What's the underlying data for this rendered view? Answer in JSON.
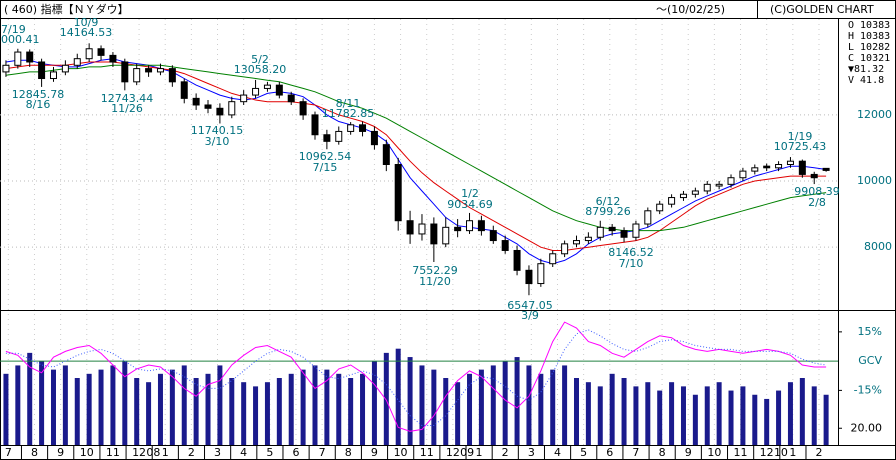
{
  "chart_data": {
    "type": "candlestick",
    "title": "( 460) 指標【ＮＹダウ】",
    "date_range": "～(10/02/25)",
    "copyright": "(C)GOLDEN CHART",
    "info": [
      "O 10383",
      "H 10383",
      "L 10282",
      "C 10321",
      "▼81.32",
      "V  41.8"
    ],
    "open": [
      13300,
      13500,
      13900,
      13600,
      13100,
      13300,
      13500,
      13700,
      14000,
      13800,
      13600,
      13000,
      13400,
      13300,
      13400,
      13000,
      12500,
      12300,
      12200,
      12000,
      12400,
      12600,
      12800,
      12900,
      12600,
      12400,
      12000,
      11400,
      11200,
      11500,
      11700,
      11500,
      11100,
      10500,
      8800,
      8400,
      8700,
      8100,
      8600,
      8500,
      8800,
      8500,
      8200,
      7900,
      7300,
      6900,
      7500,
      7800,
      8100,
      8200,
      8300,
      8600,
      8500,
      8300,
      8700,
      9100,
      9300,
      9500,
      9600,
      9700,
      9850,
      9900,
      10100,
      10300,
      10450,
      10400,
      10500,
      10600,
      10200,
      10383
    ],
    "high": [
      13650,
      14000,
      13980,
      13700,
      13450,
      13650,
      13850,
      14165,
      14100,
      13900,
      13700,
      13550,
      13500,
      13550,
      13500,
      13100,
      12650,
      12450,
      12350,
      12550,
      12750,
      13058,
      13000,
      13000,
      12700,
      12500,
      12100,
      11550,
      11650,
      11783,
      11800,
      11650,
      11250,
      10700,
      9100,
      9000,
      8900,
      8900,
      8850,
      9035,
      8950,
      8650,
      8350,
      8050,
      7450,
      7650,
      7900,
      8200,
      8350,
      8450,
      8799,
      8700,
      8600,
      8800,
      9200,
      9400,
      9600,
      9700,
      9800,
      10000,
      10000,
      10200,
      10400,
      10500,
      10530,
      10600,
      10725,
      10650,
      10280,
      10383
    ],
    "low": [
      13150,
      13400,
      13450,
      12846,
      13000,
      13200,
      13400,
      13600,
      13650,
      13450,
      12743,
      12900,
      13150,
      13200,
      12850,
      12350,
      12150,
      12050,
      11740,
      11900,
      12300,
      12500,
      12700,
      12500,
      12300,
      11850,
      11250,
      10962,
      11100,
      11400,
      11350,
      10950,
      10300,
      8500,
      8100,
      8200,
      7552,
      8000,
      8300,
      8400,
      8350,
      8100,
      7800,
      7150,
      6547,
      6800,
      7400,
      7700,
      8000,
      8100,
      8200,
      8350,
      8146,
      8200,
      8600,
      9000,
      9200,
      9400,
      9500,
      9600,
      9750,
      9800,
      10000,
      10200,
      10300,
      10300,
      10400,
      10100,
      9908,
      10282
    ],
    "close": [
      13500,
      13900,
      13600,
      13100,
      13300,
      13500,
      13700,
      14000,
      13800,
      13600,
      13000,
      13400,
      13300,
      13400,
      13000,
      12500,
      12300,
      12200,
      12000,
      12400,
      12600,
      12800,
      12900,
      12600,
      12400,
      12000,
      11400,
      11200,
      11500,
      11700,
      11500,
      11100,
      10500,
      8800,
      8400,
      8700,
      8100,
      8600,
      8500,
      8800,
      8500,
      8200,
      7900,
      7300,
      6900,
      7500,
      7800,
      8100,
      8200,
      8300,
      8600,
      8500,
      8300,
      8700,
      9100,
      9300,
      9500,
      9600,
      9700,
      9900,
      9900,
      10100,
      10300,
      10400,
      10400,
      10500,
      10600,
      10200,
      10100,
      10321
    ],
    "lines": [
      {
        "color": "#0000ff",
        "values": [
          13600,
          13650,
          13650,
          13550,
          13500,
          13450,
          13450,
          13550,
          13650,
          13700,
          13600,
          13550,
          13500,
          13400,
          13300,
          13100,
          12900,
          12750,
          12600,
          12500,
          12450,
          12500,
          12650,
          12700,
          12650,
          12550,
          12300,
          12000,
          11800,
          11700,
          11600,
          11450,
          11200,
          10650,
          10100,
          9700,
          9300,
          8900,
          8650,
          8600,
          8550,
          8500,
          8300,
          8100,
          7800,
          7600,
          7500,
          7600,
          7800,
          8100,
          8300,
          8400,
          8450,
          8500,
          8600,
          8800,
          9000,
          9200,
          9400,
          9550,
          9700,
          9850,
          10000,
          10150,
          10250,
          10350,
          10450,
          10450,
          10400,
          10350
        ]
      },
      {
        "color": "#e00000",
        "values": [
          13400,
          13450,
          13500,
          13500,
          13500,
          13500,
          13550,
          13600,
          13600,
          13600,
          13550,
          13500,
          13450,
          13400,
          13350,
          13250,
          13100,
          12950,
          12800,
          12650,
          12550,
          12450,
          12400,
          12400,
          12400,
          12350,
          12300,
          12150,
          12000,
          11900,
          11800,
          11650,
          11400,
          11000,
          10600,
          10250,
          9950,
          9700,
          9450,
          9200,
          9000,
          8800,
          8600,
          8400,
          8200,
          8000,
          7900,
          7900,
          7950,
          8000,
          8050,
          8100,
          8150,
          8200,
          8300,
          8500,
          8750,
          9000,
          9250,
          9450,
          9600,
          9750,
          9900,
          10000,
          10050,
          10100,
          10150,
          10150,
          10150,
          10150
        ]
      },
      {
        "color": "#008000",
        "values": [
          13200,
          13250,
          13300,
          13300,
          13350,
          13400,
          13400,
          13450,
          13450,
          13500,
          13500,
          13500,
          13500,
          13500,
          13450,
          13400,
          13350,
          13300,
          13250,
          13200,
          13150,
          13100,
          13050,
          13000,
          12900,
          12800,
          12700,
          12550,
          12400,
          12300,
          12200,
          12050,
          11900,
          11700,
          11500,
          11300,
          11100,
          10900,
          10700,
          10500,
          10300,
          10100,
          9900,
          9700,
          9500,
          9300,
          9100,
          8950,
          8800,
          8700,
          8600,
          8550,
          8500,
          8500,
          8500,
          8500,
          8550,
          8600,
          8700,
          8800,
          8900,
          9000,
          9100,
          9200,
          9300,
          9400,
          9500,
          9550,
          9600,
          9650
        ]
      }
    ],
    "xlim": [
      -0.5,
      70.0
    ],
    "ylim": [
      6100,
      14900
    ],
    "yticks": [
      8000,
      10000,
      12000
    ],
    "grid": true,
    "xticks": [
      {
        "value": 0.2,
        "label": "7"
      },
      {
        "value": 2.4,
        "label": "8"
      },
      {
        "value": 4.6,
        "label": "9"
      },
      {
        "value": 6.8,
        "label": "10"
      },
      {
        "value": 9.0,
        "label": "11"
      },
      {
        "value": 11.2,
        "label": "12"
      },
      {
        "value": 13.4,
        "label": "1"
      },
      {
        "value": 15.6,
        "label": "2"
      },
      {
        "value": 17.8,
        "label": "3"
      },
      {
        "value": 20.0,
        "label": "4"
      },
      {
        "value": 22.2,
        "label": "5"
      },
      {
        "value": 24.4,
        "label": "6"
      },
      {
        "value": 26.6,
        "label": "7"
      },
      {
        "value": 28.8,
        "label": "8"
      },
      {
        "value": 31.0,
        "label": "9"
      },
      {
        "value": 33.2,
        "label": "10"
      },
      {
        "value": 35.4,
        "label": "11"
      },
      {
        "value": 37.6,
        "label": "12"
      },
      {
        "value": 39.8,
        "label": "1"
      },
      {
        "value": 42.0,
        "label": "2"
      },
      {
        "value": 44.2,
        "label": "3"
      },
      {
        "value": 46.4,
        "label": "4"
      },
      {
        "value": 48.6,
        "label": "5"
      },
      {
        "value": 50.8,
        "label": "6"
      },
      {
        "value": 53.0,
        "label": "7"
      },
      {
        "value": 55.2,
        "label": "8"
      },
      {
        "value": 57.4,
        "label": "9"
      },
      {
        "value": 59.6,
        "label": "10"
      },
      {
        "value": 61.8,
        "label": "11"
      },
      {
        "value": 64.0,
        "label": "12"
      },
      {
        "value": 66.2,
        "label": "1"
      },
      {
        "value": 68.4,
        "label": "2"
      }
    ],
    "year_ticks": [
      {
        "value": 12.4,
        "label": "08"
      },
      {
        "value": 38.8,
        "label": "09"
      },
      {
        "value": 65.2,
        "label": "10"
      }
    ],
    "annotations": [
      {
        "date": "7/19",
        "price": "000.41"
      },
      {
        "date": "10/9",
        "price": "14164.53"
      },
      {
        "date": "8/16",
        "price": "12845.78"
      },
      {
        "date": "11/26",
        "price": "12743.44"
      },
      {
        "date": "3/10",
        "price": "11740.15"
      },
      {
        "date": "5/2",
        "price": "13058.20"
      },
      {
        "date": "8/11",
        "price": "11782.85"
      },
      {
        "date": "7/15",
        "price": "10962.54"
      },
      {
        "date": "1/2",
        "price": "9034.69"
      },
      {
        "date": "11/20",
        "price": "7552.29"
      },
      {
        "date": "6/12",
        "price": "8799.26"
      },
      {
        "date": "3/9",
        "price": "6547.05"
      },
      {
        "date": "7/10",
        "price": "8146.52"
      },
      {
        "date": "1/19",
        "price": "10725.43"
      },
      {
        "date": "2/8",
        "price": "9908.39"
      }
    ],
    "volume": {
      "color": "#1a1a8c",
      "ylim": [
        0,
        160
      ],
      "yticks": [
        {
          "value": 20,
          "label": "20.00"
        }
      ],
      "values": [
        85,
        95,
        110,
        100,
        90,
        95,
        80,
        85,
        90,
        95,
        100,
        80,
        75,
        85,
        90,
        95,
        80,
        85,
        95,
        80,
        75,
        70,
        75,
        80,
        85,
        90,
        95,
        90,
        85,
        80,
        85,
        100,
        110,
        115,
        105,
        95,
        90,
        80,
        75,
        85,
        90,
        95,
        100,
        105,
        95,
        85,
        90,
        95,
        80,
        75,
        70,
        85,
        80,
        70,
        75,
        65,
        75,
        70,
        60,
        70,
        75,
        65,
        70,
        60,
        55,
        65,
        75,
        80,
        70,
        60
      ]
    },
    "oscillator": {
      "ylim": [
        -43,
        25.7
      ],
      "zero_color": "#208040",
      "yticks": [
        {
          "value": 15,
          "label": "15%"
        },
        {
          "value": 0,
          "label": "GCV"
        },
        {
          "value": -15,
          "label": "-15%"
        }
      ],
      "series": [
        {
          "color": "#ff00ff",
          "style": "solid",
          "values": [
            5,
            3,
            -3,
            -6,
            2,
            5,
            7,
            8,
            4,
            -2,
            -8,
            -4,
            -2,
            -3,
            -8,
            -14,
            -18,
            -12,
            -10,
            -2,
            3,
            7,
            8,
            5,
            2,
            -6,
            -14,
            -10,
            -4,
            -2,
            -6,
            -12,
            -20,
            -34,
            -36,
            -35,
            -28,
            -18,
            -10,
            -5,
            -8,
            -14,
            -20,
            -24,
            -18,
            -5,
            10,
            20,
            17,
            10,
            8,
            4,
            2,
            6,
            10,
            13,
            12,
            8,
            6,
            5,
            6,
            5,
            4,
            5,
            6,
            5,
            3,
            -2,
            -3,
            -3
          ]
        },
        {
          "color": "#4060ff",
          "style": "dotted",
          "values": [
            4,
            4,
            1,
            -2,
            -3,
            0,
            3,
            5,
            6,
            4,
            0,
            -4,
            -5,
            -4,
            -5,
            -8,
            -12,
            -14,
            -14,
            -10,
            -5,
            0,
            4,
            6,
            5,
            2,
            -3,
            -8,
            -9,
            -7,
            -5,
            -7,
            -12,
            -20,
            -28,
            -33,
            -33,
            -28,
            -20,
            -12,
            -8,
            -9,
            -13,
            -18,
            -20,
            -16,
            -6,
            6,
            14,
            16,
            13,
            9,
            6,
            5,
            7,
            10,
            11,
            10,
            8,
            7,
            6,
            6,
            5,
            5,
            5,
            5,
            4,
            1,
            -1,
            -2
          ]
        }
      ]
    }
  }
}
